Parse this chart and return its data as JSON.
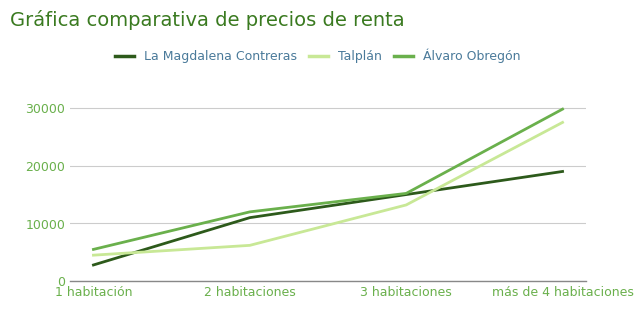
{
  "title": "Gráfica comparativa de precios de renta",
  "title_color": "#3a7a20",
  "title_fontsize": 14,
  "categories": [
    "1 habitación",
    "2 habitaciones",
    "3 habitaciones",
    "más de 4 habitaciones"
  ],
  "series": [
    {
      "label": "La Magdalena Contreras",
      "values": [
        2800,
        11000,
        15000,
        19000
      ],
      "color": "#2d5a1b",
      "linewidth": 2.0
    },
    {
      "label": "Talplán",
      "values": [
        4500,
        6200,
        13200,
        27500
      ],
      "color": "#c8e896",
      "linewidth": 2.0
    },
    {
      "label": "Álvaro Obregón",
      "values": [
        5500,
        12000,
        15200,
        29800
      ],
      "color": "#6ab04c",
      "linewidth": 2.0
    }
  ],
  "ylim": [
    0,
    32500
  ],
  "yticks": [
    0,
    10000,
    20000,
    30000
  ],
  "ytick_labels": [
    "0",
    "10000",
    "20000",
    "30000"
  ],
  "grid_color": "#cccccc",
  "background_color": "#ffffff",
  "tick_color": "#6ab04c",
  "xtick_color": "#6ab04c",
  "tick_fontsize": 9,
  "legend_fontsize": 9,
  "legend_text_color": "#4a7a9a",
  "bottom_spine_color": "#888888"
}
